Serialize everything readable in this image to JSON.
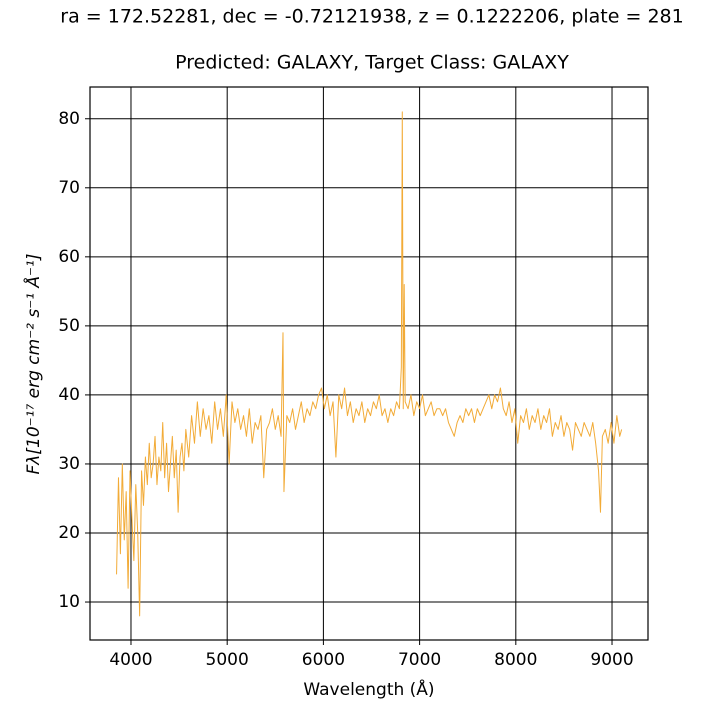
{
  "chart_data": {
    "type": "line",
    "title": "ra = 172.52281, dec = -0.72121938, z = 0.1222206, plate = 281",
    "subtitle": "Predicted: GALAXY, Target Class: GALAXY",
    "x_label": "Wavelength (Å)",
    "y_label": "Fλ[10⁻¹⁷ erg cm⁻² s⁻¹ Å⁻¹]",
    "grid": true,
    "xlim": [
      3574,
      9374
    ],
    "ylim": [
      4.5,
      84.6
    ],
    "xticks": [
      4000,
      5000,
      6000,
      7000,
      8000,
      9000
    ],
    "yticks": [
      10,
      20,
      30,
      40,
      50,
      60,
      70,
      80
    ],
    "x": [
      3850,
      3870,
      3890,
      3910,
      3930,
      3950,
      3970,
      3990,
      4010,
      4030,
      4050,
      4070,
      4090,
      4110,
      4130,
      4150,
      4170,
      4190,
      4210,
      4230,
      4250,
      4270,
      4290,
      4310,
      4330,
      4350,
      4370,
      4390,
      4410,
      4430,
      4450,
      4470,
      4490,
      4510,
      4530,
      4550,
      4570,
      4600,
      4630,
      4660,
      4690,
      4720,
      4750,
      4780,
      4810,
      4840,
      4870,
      4900,
      4930,
      4960,
      4990,
      5020,
      5050,
      5080,
      5110,
      5140,
      5170,
      5200,
      5230,
      5260,
      5290,
      5320,
      5350,
      5380,
      5410,
      5440,
      5470,
      5500,
      5530,
      5560,
      5580,
      5590,
      5620,
      5650,
      5680,
      5710,
      5740,
      5770,
      5800,
      5830,
      5860,
      5890,
      5920,
      5950,
      5980,
      6010,
      6040,
      6070,
      6100,
      6130,
      6160,
      6190,
      6220,
      6250,
      6280,
      6310,
      6340,
      6370,
      6400,
      6430,
      6460,
      6490,
      6520,
      6550,
      6580,
      6610,
      6640,
      6670,
      6700,
      6730,
      6760,
      6790,
      6810,
      6820,
      6830,
      6840,
      6850,
      6880,
      6910,
      6940,
      6970,
      7000,
      7030,
      7060,
      7090,
      7120,
      7150,
      7180,
      7210,
      7240,
      7270,
      7300,
      7330,
      7360,
      7390,
      7420,
      7450,
      7480,
      7510,
      7540,
      7570,
      7600,
      7630,
      7660,
      7690,
      7720,
      7750,
      7780,
      7810,
      7840,
      7870,
      7900,
      7930,
      7960,
      7990,
      8020,
      8050,
      8080,
      8110,
      8140,
      8170,
      8200,
      8230,
      8260,
      8290,
      8320,
      8350,
      8380,
      8410,
      8440,
      8470,
      8500,
      8530,
      8560,
      8590,
      8620,
      8650,
      8680,
      8710,
      8740,
      8770,
      8800,
      8830,
      8860,
      8880,
      8900,
      8930,
      8960,
      8990,
      9020,
      9050,
      9080,
      9100
    ],
    "series": [
      {
        "color": "#f2ab37",
        "values": [
          14,
          28,
          17,
          30,
          19,
          26,
          12,
          29,
          22,
          16,
          27,
          20,
          8,
          29,
          24,
          31,
          27,
          33,
          28,
          30,
          34,
          27,
          31,
          29,
          36,
          28,
          33,
          26,
          30,
          34,
          28,
          32,
          23,
          31,
          33,
          29,
          35,
          31,
          37,
          33,
          39,
          34,
          38,
          35,
          37,
          33,
          39,
          35,
          38,
          34,
          40,
          30,
          39,
          36,
          38,
          35,
          37,
          34,
          38,
          33,
          36,
          35,
          37,
          28,
          35,
          36,
          38,
          35,
          37,
          34,
          49,
          26,
          37,
          36,
          38,
          35,
          37,
          39,
          36,
          38,
          37,
          39,
          38,
          40,
          41,
          38,
          40,
          37,
          39,
          31,
          40,
          38,
          41,
          37,
          39,
          36,
          38,
          37,
          39,
          36,
          38,
          37,
          39,
          38,
          40,
          37,
          38,
          36,
          38,
          37,
          39,
          38,
          44,
          81,
          38,
          56,
          39,
          38,
          40,
          37,
          39,
          38,
          40,
          37,
          38,
          39,
          37,
          38,
          38,
          37,
          38,
          36,
          35,
          34,
          36,
          37,
          36,
          38,
          37,
          38,
          36,
          38,
          37,
          38,
          39,
          40,
          38,
          40,
          39,
          41,
          38,
          37,
          39,
          36,
          38,
          33,
          37,
          36,
          38,
          35,
          37,
          36,
          38,
          35,
          37,
          36,
          38,
          34,
          36,
          35,
          37,
          34,
          36,
          35,
          32,
          36,
          35,
          34,
          36,
          35,
          34,
          36,
          33,
          29,
          23,
          34,
          35,
          33,
          36,
          33,
          37,
          34,
          35
        ]
      }
    ]
  }
}
